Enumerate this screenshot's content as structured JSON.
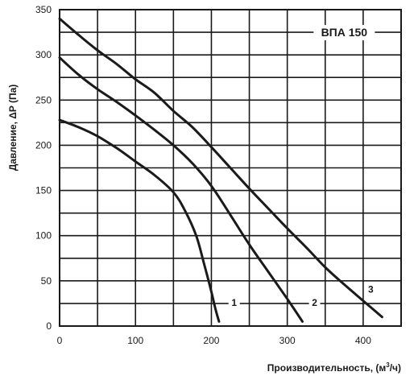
{
  "chart_data": {
    "type": "line",
    "title": "ВПА 150",
    "xlabel": "Производительность, (м",
    "xlabel_sup": "3",
    "xlabel_tail": "/ч)",
    "ylabel": "Давление, ΔP (Па)",
    "xlim": [
      0,
      450
    ],
    "ylim": [
      0,
      350
    ],
    "x_ticks": [
      0,
      100,
      200,
      300,
      400
    ],
    "y_ticks": [
      0,
      50,
      100,
      150,
      200,
      250,
      300,
      350
    ],
    "grid": true,
    "series": [
      {
        "name": "1",
        "points": [
          [
            0,
            228
          ],
          [
            25,
            220
          ],
          [
            50,
            210
          ],
          [
            75,
            197
          ],
          [
            100,
            182
          ],
          [
            125,
            167
          ],
          [
            150,
            148
          ],
          [
            165,
            128
          ],
          [
            180,
            100
          ],
          [
            190,
            70
          ],
          [
            200,
            38
          ],
          [
            205,
            20
          ],
          [
            210,
            5
          ]
        ]
      },
      {
        "name": "2",
        "points": [
          [
            0,
            297
          ],
          [
            25,
            278
          ],
          [
            50,
            262
          ],
          [
            75,
            248
          ],
          [
            100,
            233
          ],
          [
            125,
            217
          ],
          [
            150,
            200
          ],
          [
            175,
            180
          ],
          [
            200,
            155
          ],
          [
            225,
            123
          ],
          [
            250,
            90
          ],
          [
            275,
            60
          ],
          [
            300,
            30
          ],
          [
            320,
            5
          ]
        ]
      },
      {
        "name": "3",
        "points": [
          [
            0,
            340
          ],
          [
            25,
            322
          ],
          [
            50,
            305
          ],
          [
            75,
            290
          ],
          [
            100,
            273
          ],
          [
            125,
            258
          ],
          [
            150,
            238
          ],
          [
            175,
            220
          ],
          [
            200,
            198
          ],
          [
            225,
            175
          ],
          [
            250,
            152
          ],
          [
            275,
            130
          ],
          [
            300,
            108
          ],
          [
            325,
            87
          ],
          [
            350,
            65
          ],
          [
            375,
            46
          ],
          [
            400,
            28
          ],
          [
            425,
            10
          ]
        ]
      }
    ]
  }
}
